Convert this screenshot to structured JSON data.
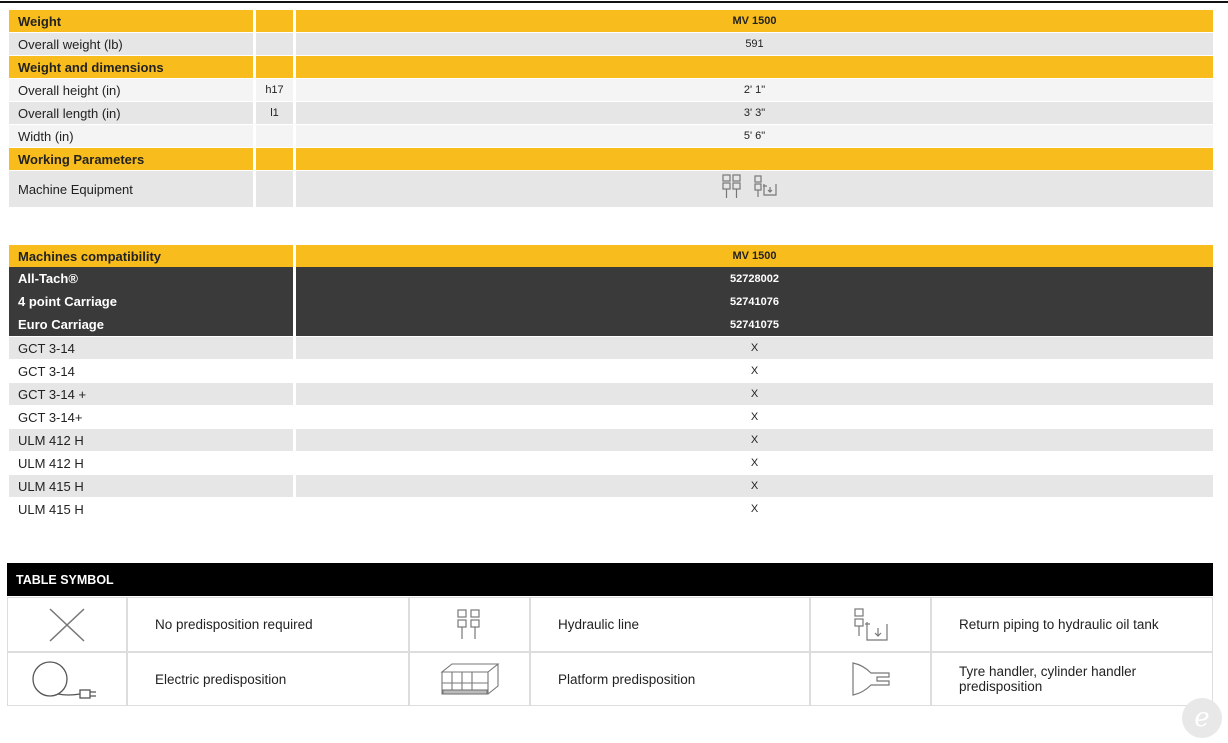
{
  "spec": {
    "sections": [
      {
        "title": "Weight",
        "title_value": "MV 1500",
        "rows": [
          {
            "label": "Overall weight (lb)",
            "value": "591"
          }
        ]
      },
      {
        "title": "Weight and dimensions",
        "rows": [
          {
            "label": "Overall height (in)",
            "code": "h17",
            "value": "2' 1\""
          },
          {
            "label": "Overall length (in)",
            "code": "l1",
            "value": "3' 3\""
          },
          {
            "label": "Width (in)",
            "value": "5' 6\""
          }
        ]
      },
      {
        "title": "Working Parameters",
        "rows": [
          {
            "label": "Machine Equipment"
          }
        ]
      }
    ]
  },
  "compatibility": {
    "title": "Machines compatibility",
    "title_value": "MV 1500",
    "attachments": [
      {
        "name": "All-Tach®",
        "code": "52728002"
      },
      {
        "name": "4 point Carriage",
        "code": "52741076"
      },
      {
        "name": "Euro Carriage",
        "code": "52741075"
      }
    ],
    "machines": [
      {
        "name": "GCT 3-14",
        "mark": "X"
      },
      {
        "name": "GCT 3-14",
        "mark": "X"
      },
      {
        "name": "GCT 3-14 +",
        "mark": "X"
      },
      {
        "name": "GCT 3-14+",
        "mark": "X"
      },
      {
        "name": "ULM 412 H",
        "mark": "X"
      },
      {
        "name": "ULM 412 H",
        "mark": "X"
      },
      {
        "name": "ULM 415 H",
        "mark": "X"
      },
      {
        "name": "ULM 415 H",
        "mark": "X"
      }
    ]
  },
  "symbols": {
    "title": "TABLE SYMBOL",
    "items": [
      "No predisposition required",
      "Hydraulic line",
      "Return piping to hydraulic oil tank",
      "Electric predisposition",
      "Platform predisposition",
      "Tyre handler, cylinder handler predisposition"
    ]
  }
}
